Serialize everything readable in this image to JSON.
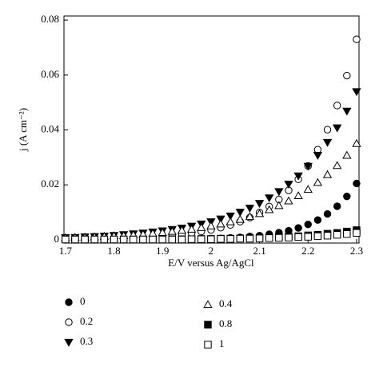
{
  "chart_data": {
    "type": "scatter",
    "x_label": "E/V versus Ag/AgCl",
    "y_label": "j (A cm⁻²)",
    "xlim": [
      1.697,
      2.305
    ],
    "ylim": [
      -0.0012,
      0.0815
    ],
    "xticks": [
      1.7,
      1.8,
      1.9,
      2,
      2.1,
      2.2,
      2.3
    ],
    "yticks": [
      0,
      0.02,
      0.04,
      0.06,
      0.08
    ],
    "grid": false,
    "legend": "bottom",
    "x": [
      1.7,
      1.72,
      1.74,
      1.76,
      1.78,
      1.8,
      1.82,
      1.84,
      1.86,
      1.88,
      1.9,
      1.92,
      1.94,
      1.96,
      1.98,
      2.0,
      2.02,
      2.04,
      2.06,
      2.08,
      2.1,
      2.12,
      2.14,
      2.16,
      2.18,
      2.2,
      2.22,
      2.24,
      2.26,
      2.28,
      2.3
    ],
    "series": [
      {
        "name": "0",
        "color": "#000000",
        "marker": "circle-filled",
        "values": [
          0,
          0,
          0,
          0,
          0,
          0,
          0,
          0,
          0,
          0.0001,
          0.0001,
          0.0001,
          0.0002,
          0.0002,
          0.0003,
          0.0004,
          0.0005,
          0.0007,
          0.0009,
          0.0012,
          0.0015,
          0.002,
          0.0026,
          0.0033,
          0.0043,
          0.0056,
          0.0072,
          0.0094,
          0.0122,
          0.0158,
          0.0205
        ]
      },
      {
        "name": "0.2",
        "color": "#000000",
        "marker": "circle-open",
        "values": [
          0.0002,
          0.0002,
          0.0003,
          0.0003,
          0.0004,
          0.0005,
          0.0006,
          0.0007,
          0.0009,
          0.0011,
          0.0013,
          0.0016,
          0.002,
          0.0024,
          0.003,
          0.0036,
          0.0044,
          0.0054,
          0.0066,
          0.0081,
          0.0099,
          0.0121,
          0.0147,
          0.018,
          0.022,
          0.0269,
          0.0328,
          0.0401,
          0.0489,
          0.0598,
          0.073
        ]
      },
      {
        "name": "0.3",
        "color": "#000000",
        "marker": "triangle-down-filled",
        "values": [
          0.0008,
          0.0009,
          0.0011,
          0.0012,
          0.0014,
          0.0016,
          0.0019,
          0.0022,
          0.0025,
          0.0029,
          0.0033,
          0.0038,
          0.0043,
          0.005,
          0.0058,
          0.0066,
          0.0076,
          0.0087,
          0.0101,
          0.0116,
          0.0133,
          0.0153,
          0.0176,
          0.0203,
          0.0233,
          0.0268,
          0.0308,
          0.0355,
          0.0408,
          0.0469,
          0.054
        ]
      },
      {
        "name": "0.4",
        "color": "#000000",
        "marker": "triangle-up-open",
        "values": [
          0.0007,
          0.0008,
          0.0009,
          0.001,
          0.0012,
          0.0014,
          0.0015,
          0.0018,
          0.002,
          0.0023,
          0.0026,
          0.003,
          0.0034,
          0.0038,
          0.0044,
          0.005,
          0.0057,
          0.0065,
          0.0074,
          0.0084,
          0.0095,
          0.0109,
          0.0124,
          0.0141,
          0.016,
          0.0183,
          0.0208,
          0.0237,
          0.027,
          0.0307,
          0.035
        ]
      },
      {
        "name": "0.8",
        "color": "#000000",
        "marker": "square-filled",
        "values": [
          0.0001,
          0.0001,
          0.0001,
          0.0001,
          0.0001,
          0.0001,
          0.0001,
          0.0001,
          0.0001,
          0.0001,
          0.0001,
          0.0002,
          0.0002,
          0.0002,
          0.0003,
          0.0003,
          0.0004,
          0.0004,
          0.0005,
          0.0006,
          0.0007,
          0.0008,
          0.001,
          0.0011,
          0.0013,
          0.0016,
          0.0018,
          0.0022,
          0.0025,
          0.003,
          0.0035
        ]
      },
      {
        "name": "1",
        "color": "#000000",
        "marker": "square-open",
        "values": [
          0.0001,
          0.0001,
          0.0001,
          0.0001,
          0.0001,
          0.0001,
          0.0001,
          0.0001,
          0.0001,
          0.0001,
          0.0001,
          0.0001,
          0.0001,
          0.0002,
          0.0002,
          0.0002,
          0.0003,
          0.0003,
          0.0004,
          0.0004,
          0.0005,
          0.0006,
          0.0007,
          0.0008,
          0.001,
          0.0011,
          0.0013,
          0.0015,
          0.0018,
          0.0021,
          0.0025
        ]
      }
    ]
  }
}
